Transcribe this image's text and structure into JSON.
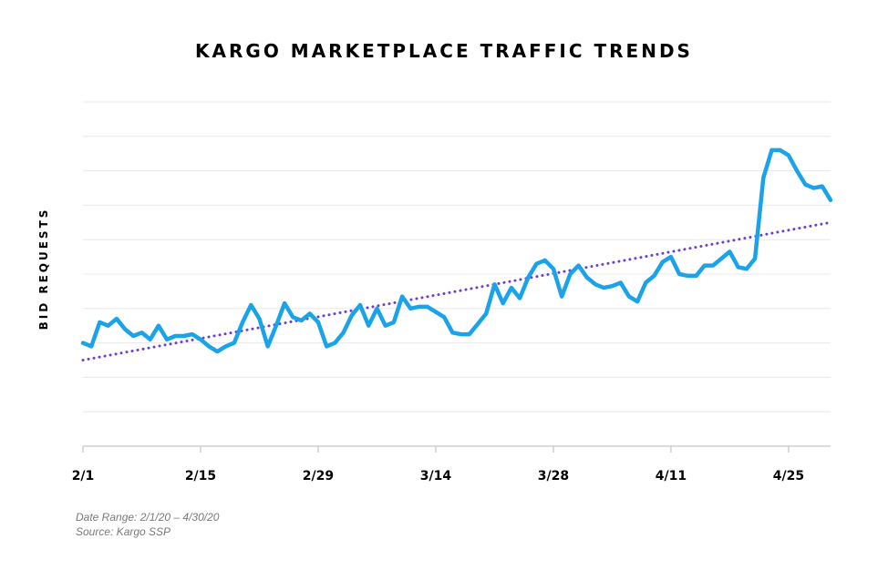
{
  "chart_data": {
    "type": "line",
    "title": "KARGO MARKETPLACE TRAFFIC TRENDS",
    "xlabel": "",
    "ylabel": "BID REQUESTS",
    "x_tick_labels": [
      "2/1",
      "2/15",
      "2/29",
      "3/14",
      "3/28",
      "4/11",
      "4/25"
    ],
    "x_tick_index": [
      0,
      14,
      28,
      42,
      56,
      70,
      84
    ],
    "ylim": [
      0,
      10
    ],
    "grid": true,
    "colors": {
      "series": "#1aa3e8",
      "trend": "#6a3fcf",
      "grid": "#e8e8e8",
      "axis": "#cfcfcf"
    },
    "series": [
      {
        "name": "Bid Requests",
        "values": [
          3.0,
          2.9,
          3.6,
          3.5,
          3.7,
          3.4,
          3.2,
          3.3,
          3.1,
          3.5,
          3.1,
          3.2,
          3.2,
          3.25,
          3.1,
          2.9,
          2.75,
          2.9,
          3.0,
          3.6,
          4.1,
          3.7,
          2.9,
          3.5,
          4.15,
          3.75,
          3.65,
          3.85,
          3.6,
          2.9,
          3.0,
          3.3,
          3.8,
          4.1,
          3.5,
          4.0,
          3.5,
          3.6,
          4.35,
          4.0,
          4.05,
          4.05,
          3.9,
          3.75,
          3.3,
          3.25,
          3.25,
          3.55,
          3.85,
          4.7,
          4.15,
          4.6,
          4.3,
          4.9,
          5.3,
          5.4,
          5.15,
          4.35,
          5.0,
          5.25,
          4.9,
          4.7,
          4.6,
          4.65,
          4.75,
          4.35,
          4.2,
          4.75,
          4.95,
          5.35,
          5.5,
          5.0,
          4.95,
          4.95,
          5.25,
          5.25,
          5.45,
          5.65,
          5.2,
          5.15,
          5.45,
          7.8,
          8.6,
          8.6,
          8.45,
          8.0,
          7.6,
          7.5,
          7.55,
          7.15
        ]
      }
    ],
    "trendline": {
      "name": "Linear trend",
      "start": 2.5,
      "end": 6.5,
      "style": "dotted"
    }
  },
  "footer": {
    "date_range": "Date Range: 2/1/20 – 4/30/20",
    "source": "Source: Kargo SSP"
  }
}
